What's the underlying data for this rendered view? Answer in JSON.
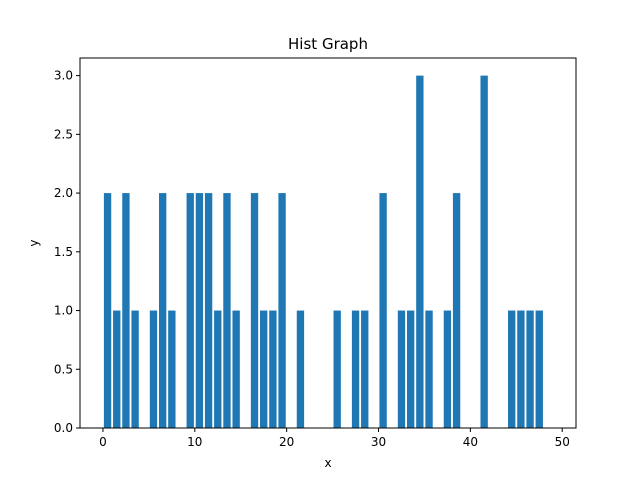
{
  "chart_data": {
    "type": "bar",
    "title": "Hist Graph",
    "xlabel": "x",
    "ylabel": "y",
    "xlim": [
      -2.5,
      51.5
    ],
    "ylim": [
      0,
      3.15
    ],
    "xticks": [
      0,
      10,
      20,
      30,
      40,
      50
    ],
    "yticks": [
      0.0,
      0.5,
      1.0,
      1.5,
      2.0,
      2.5,
      3.0
    ],
    "ytick_labels": [
      "0.0",
      "0.5",
      "1.0",
      "1.5",
      "2.0",
      "2.5",
      "3.0"
    ],
    "bar_color": "#1f77b4",
    "grid": false,
    "series": [
      {
        "x": [
          0.5,
          1.5,
          2.5,
          3.5,
          5.5,
          6.5,
          7.5,
          9.5,
          10.5,
          11.5,
          12.5,
          13.5,
          14.5,
          16.5,
          17.5,
          18.5,
          19.5,
          21.5,
          25.5,
          27.5,
          28.5,
          30.5,
          32.5,
          33.5,
          34.5,
          35.5,
          37.5,
          38.5,
          41.5,
          44.5,
          45.5,
          46.5,
          47.5
        ],
        "values": [
          2,
          1,
          2,
          1,
          1,
          2,
          1,
          2,
          2,
          2,
          1,
          2,
          1,
          2,
          1,
          1,
          2,
          1,
          1,
          1,
          1,
          2,
          1,
          1,
          3,
          1,
          1,
          2,
          3,
          1,
          1,
          1,
          1
        ]
      }
    ]
  }
}
